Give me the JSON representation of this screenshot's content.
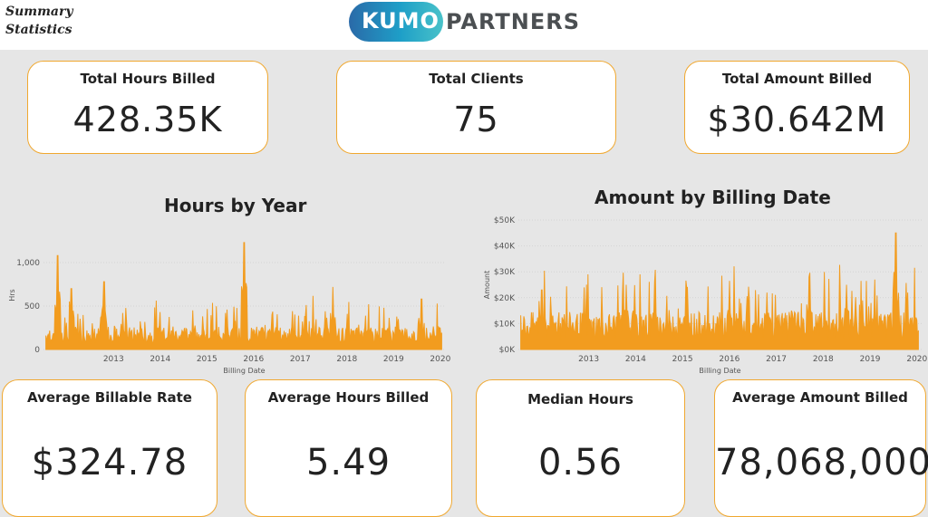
{
  "header": {
    "title": "Summary\nStatistics",
    "logo": {
      "left_text": "KUMO",
      "right_text": "PARTNERS"
    }
  },
  "kpis_top": [
    {
      "label": "Total Hours Billed",
      "value": "428.35K"
    },
    {
      "label": "Total Clients",
      "value": "75"
    },
    {
      "label": "Total Amount Billed",
      "value": "$30.642M"
    }
  ],
  "kpis_bottom": [
    {
      "label": "Average Billable Rate",
      "value": "$324.78"
    },
    {
      "label": "Average Hours Billed",
      "value": "5.49"
    },
    {
      "label": "Median Hours",
      "value": "0.56"
    },
    {
      "label": "Average Amount Billed",
      "value": "78,068,000"
    }
  ],
  "colors": {
    "accent": "#f0a830",
    "series": "#f29c1f"
  },
  "chart_data": [
    {
      "type": "area",
      "title": "Hours by Year",
      "xlabel": "Billing Date",
      "ylabel": "Hrs",
      "x_ticks": [
        "2013",
        "2014",
        "2015",
        "2016",
        "2017",
        "2018",
        "2019",
        "2020"
      ],
      "y_ticks": [
        "0",
        "500",
        "1,000"
      ],
      "ylim": [
        0,
        1250
      ],
      "xlim": [
        2012.0,
        2020.6
      ],
      "grid": true,
      "peaks": [
        {
          "x": 2012.3,
          "y": 1080
        },
        {
          "x": 2012.6,
          "y": 700
        },
        {
          "x": 2013.3,
          "y": 780
        },
        {
          "x": 2013.7,
          "y": 420
        },
        {
          "x": 2014.5,
          "y": 430
        },
        {
          "x": 2015.2,
          "y": 450
        },
        {
          "x": 2015.9,
          "y": 420
        },
        {
          "x": 2016.3,
          "y": 1230
        },
        {
          "x": 2016.9,
          "y": 400
        },
        {
          "x": 2017.6,
          "y": 380
        },
        {
          "x": 2018.2,
          "y": 720
        },
        {
          "x": 2018.9,
          "y": 390
        },
        {
          "x": 2019.6,
          "y": 350
        },
        {
          "x": 2020.1,
          "y": 580
        }
      ],
      "baseline": 180
    },
    {
      "type": "area",
      "title": "Amount by Billing Date",
      "xlabel": "Billing Date",
      "ylabel": "Amount",
      "x_ticks": [
        "2013",
        "2014",
        "2015",
        "2016",
        "2017",
        "2018",
        "2019",
        "2020"
      ],
      "y_ticks": [
        "$0K",
        "$10K",
        "$20K",
        "$30K",
        "$40K",
        "$50K"
      ],
      "ylim": [
        0,
        50000
      ],
      "xlim": [
        2012.0,
        2020.6
      ],
      "grid": true,
      "peaks": [
        {
          "x": 2012.5,
          "y": 23000
        },
        {
          "x": 2013.4,
          "y": 24000
        },
        {
          "x": 2014.3,
          "y": 25000
        },
        {
          "x": 2014.9,
          "y": 26000
        },
        {
          "x": 2015.6,
          "y": 24000
        },
        {
          "x": 2016.5,
          "y": 26500
        },
        {
          "x": 2017.3,
          "y": 22000
        },
        {
          "x": 2018.2,
          "y": 28000
        },
        {
          "x": 2019.0,
          "y": 25000
        },
        {
          "x": 2019.6,
          "y": 27000
        },
        {
          "x": 2020.05,
          "y": 45000
        },
        {
          "x": 2020.3,
          "y": 22000
        }
      ],
      "baseline": 10000
    }
  ]
}
